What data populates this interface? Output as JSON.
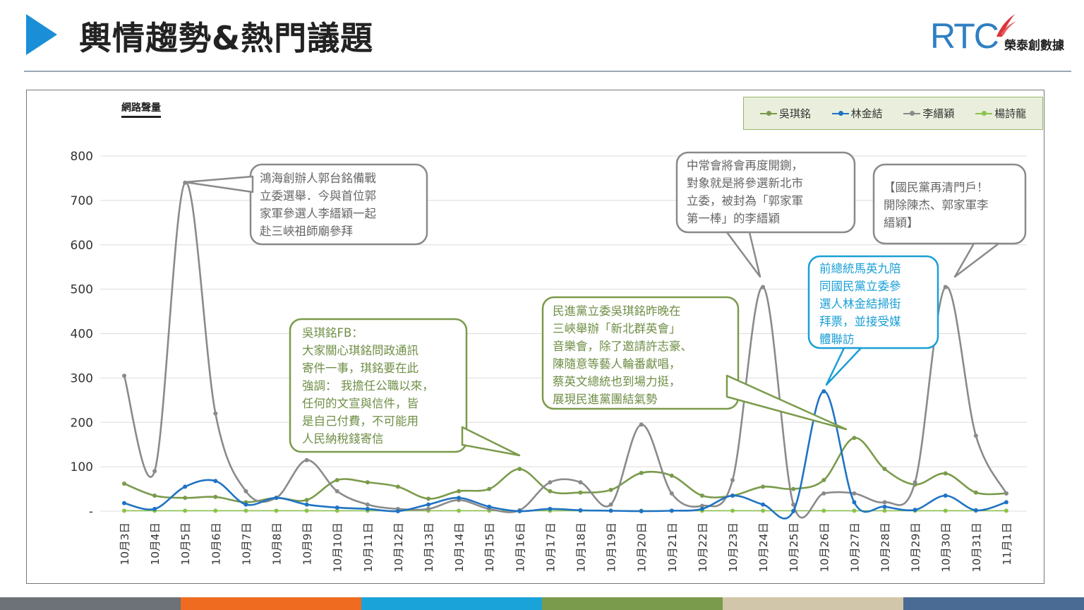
{
  "header": {
    "title": "輿情趨勢&熱門議題",
    "logo_mark": "RTC",
    "logo_text": "榮泰創數據",
    "accent_color": "#1a8fd8"
  },
  "footer_colors": [
    "#6d7278",
    "#ee6b1f",
    "#1aa3d9",
    "#7a9b4b",
    "#d2c6aa",
    "#4a6b93"
  ],
  "chart_data": {
    "type": "line",
    "ylabel": "網路聲量",
    "ylim": [
      0,
      800
    ],
    "yticks": [
      "800",
      "700",
      "600",
      "500",
      "400",
      "300",
      "200",
      "100",
      "-"
    ],
    "grid": true,
    "legend_position": "top-right",
    "categories": [
      "10月3日",
      "10月4日",
      "10月5日",
      "10月6日",
      "10月7日",
      "10月8日",
      "10月9日",
      "10月10日",
      "10月11日",
      "10月12日",
      "10月13日",
      "10月14日",
      "10月15日",
      "10月16日",
      "10月17日",
      "10月18日",
      "10月19日",
      "10月20日",
      "10月21日",
      "10月22日",
      "10月23日",
      "10月24日",
      "10月25日",
      "10月26日",
      "10月27日",
      "10月28日",
      "10月29日",
      "10月30日",
      "10月31日",
      "11月1日"
    ],
    "series": [
      {
        "name": "吳琪銘",
        "color": "#7a9b4b",
        "values": [
          62,
          35,
          30,
          32,
          20,
          30,
          25,
          70,
          65,
          55,
          28,
          45,
          50,
          95,
          45,
          42,
          48,
          86,
          80,
          35,
          35,
          55,
          50,
          70,
          165,
          95,
          60,
          85,
          42,
          40
        ]
      },
      {
        "name": "林金結",
        "color": "#1f73c4",
        "values": [
          18,
          5,
          55,
          68,
          15,
          30,
          15,
          8,
          5,
          0,
          15,
          30,
          10,
          0,
          5,
          2,
          1,
          0,
          1,
          5,
          35,
          15,
          0,
          270,
          20,
          10,
          3,
          35,
          2,
          20
        ]
      },
      {
        "name": "李縉穎",
        "color": "#8a8a8a",
        "values": [
          305,
          90,
          740,
          220,
          45,
          30,
          115,
          45,
          15,
          5,
          5,
          25,
          5,
          2,
          65,
          65,
          15,
          195,
          40,
          12,
          70,
          505,
          15,
          40,
          40,
          20,
          65,
          505,
          170,
          40
        ]
      },
      {
        "name": "楊詩龍",
        "color": "#8bc34a",
        "values": [
          1,
          1,
          1,
          1,
          1,
          1,
          1,
          1,
          1,
          1,
          1,
          1,
          1,
          1,
          1,
          1,
          1,
          1,
          1,
          1,
          1,
          1,
          1,
          1,
          1,
          1,
          1,
          1,
          1,
          1
        ]
      }
    ],
    "annotations": [
      {
        "text": [
          "鴻海創辦人郭台銘備戰",
          "立委選舉．今與首位郭",
          "家軍參選人李縉穎一起",
          "赴三峽祖師廟參拜"
        ],
        "color": "#8a8a8a"
      },
      {
        "text": [
          "吳琪銘FB：",
          "大家關心琪銘問政通訊",
          "寄件一事，琪銘要在此",
          "強調： 我擔任公職以來，",
          "任何的文宣與信件，皆",
          "是自己付費，不可能用",
          "人民納稅錢寄信"
        ],
        "color": "#7a9b4b"
      },
      {
        "text": [
          "民進黨立委吳琪銘昨晚在",
          "三峽舉辦「新北群英會」",
          "音樂會，除了邀請許志豪、",
          "陳隨意等藝人輪番獻唱，",
          "蔡英文總統也到場力挺，",
          "展現民進黨團結氣勢"
        ],
        "color": "#7a9b4b"
      },
      {
        "text": [
          "中常會將會再度開鍘，",
          "對象就是將參選新北市",
          "立委，被封為「郭家軍",
          "第一棒」的李縉穎"
        ],
        "color": "#8a8a8a"
      },
      {
        "text": [
          "前總統馬英九陪",
          "同國民黨立委參",
          "選人林金結掃街",
          "拜票，並接受媒",
          "體聯訪"
        ],
        "color": "#1a9fd6"
      },
      {
        "text": [
          "【國民黨再清門戶！",
          "開除陳杰、郭家軍李",
          "縉穎】"
        ],
        "color": "#8a8a8a"
      }
    ]
  }
}
